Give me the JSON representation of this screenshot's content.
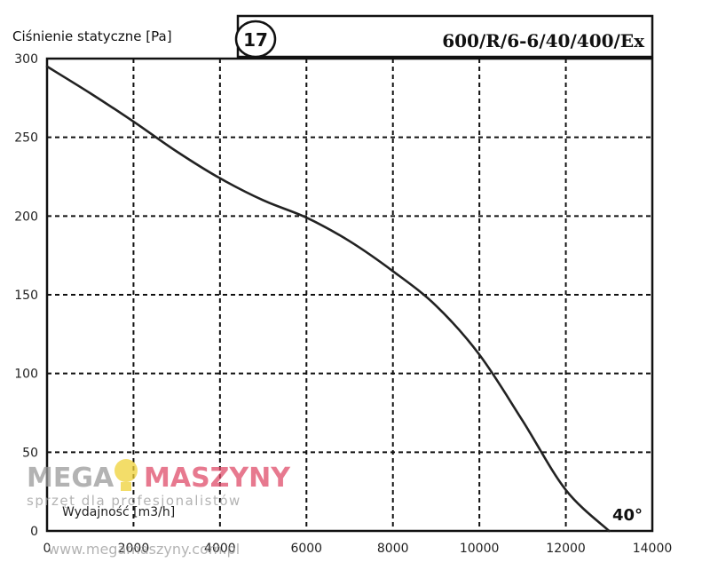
{
  "chart_data": {
    "type": "line",
    "ylabel": "Ciśnienie statyczne [Pa]",
    "xlabel": "Wydajność [m3/h]",
    "badge": "17",
    "model": "600/R/6-6/40/400/Ex",
    "annotation": "40°",
    "xlim": [
      0,
      14000
    ],
    "ylim": [
      0,
      300
    ],
    "xticks": [
      0,
      2000,
      4000,
      6000,
      8000,
      10000,
      12000,
      14000
    ],
    "yticks": [
      0,
      50,
      100,
      150,
      200,
      250,
      300
    ],
    "grid": true,
    "series": [
      {
        "points": [
          [
            0,
            295
          ],
          [
            1000,
            278
          ],
          [
            2000,
            260
          ],
          [
            3000,
            241
          ],
          [
            4000,
            224
          ],
          [
            5000,
            210
          ],
          [
            6000,
            199
          ],
          [
            7000,
            184
          ],
          [
            8000,
            165
          ],
          [
            9000,
            143
          ],
          [
            10000,
            112
          ],
          [
            11000,
            70
          ],
          [
            12000,
            26
          ],
          [
            13000,
            0
          ]
        ]
      }
    ]
  },
  "watermark": {
    "brand_left": "MEGA",
    "brand_right": "MASZYNY",
    "tagline": "sprzęt dla profesjonalistów",
    "url": "www.megamaszyny.com.pl",
    "accent_color": "#f0d238",
    "brand_color": "#e04d6a",
    "gray_color": "#9a9a9a"
  }
}
